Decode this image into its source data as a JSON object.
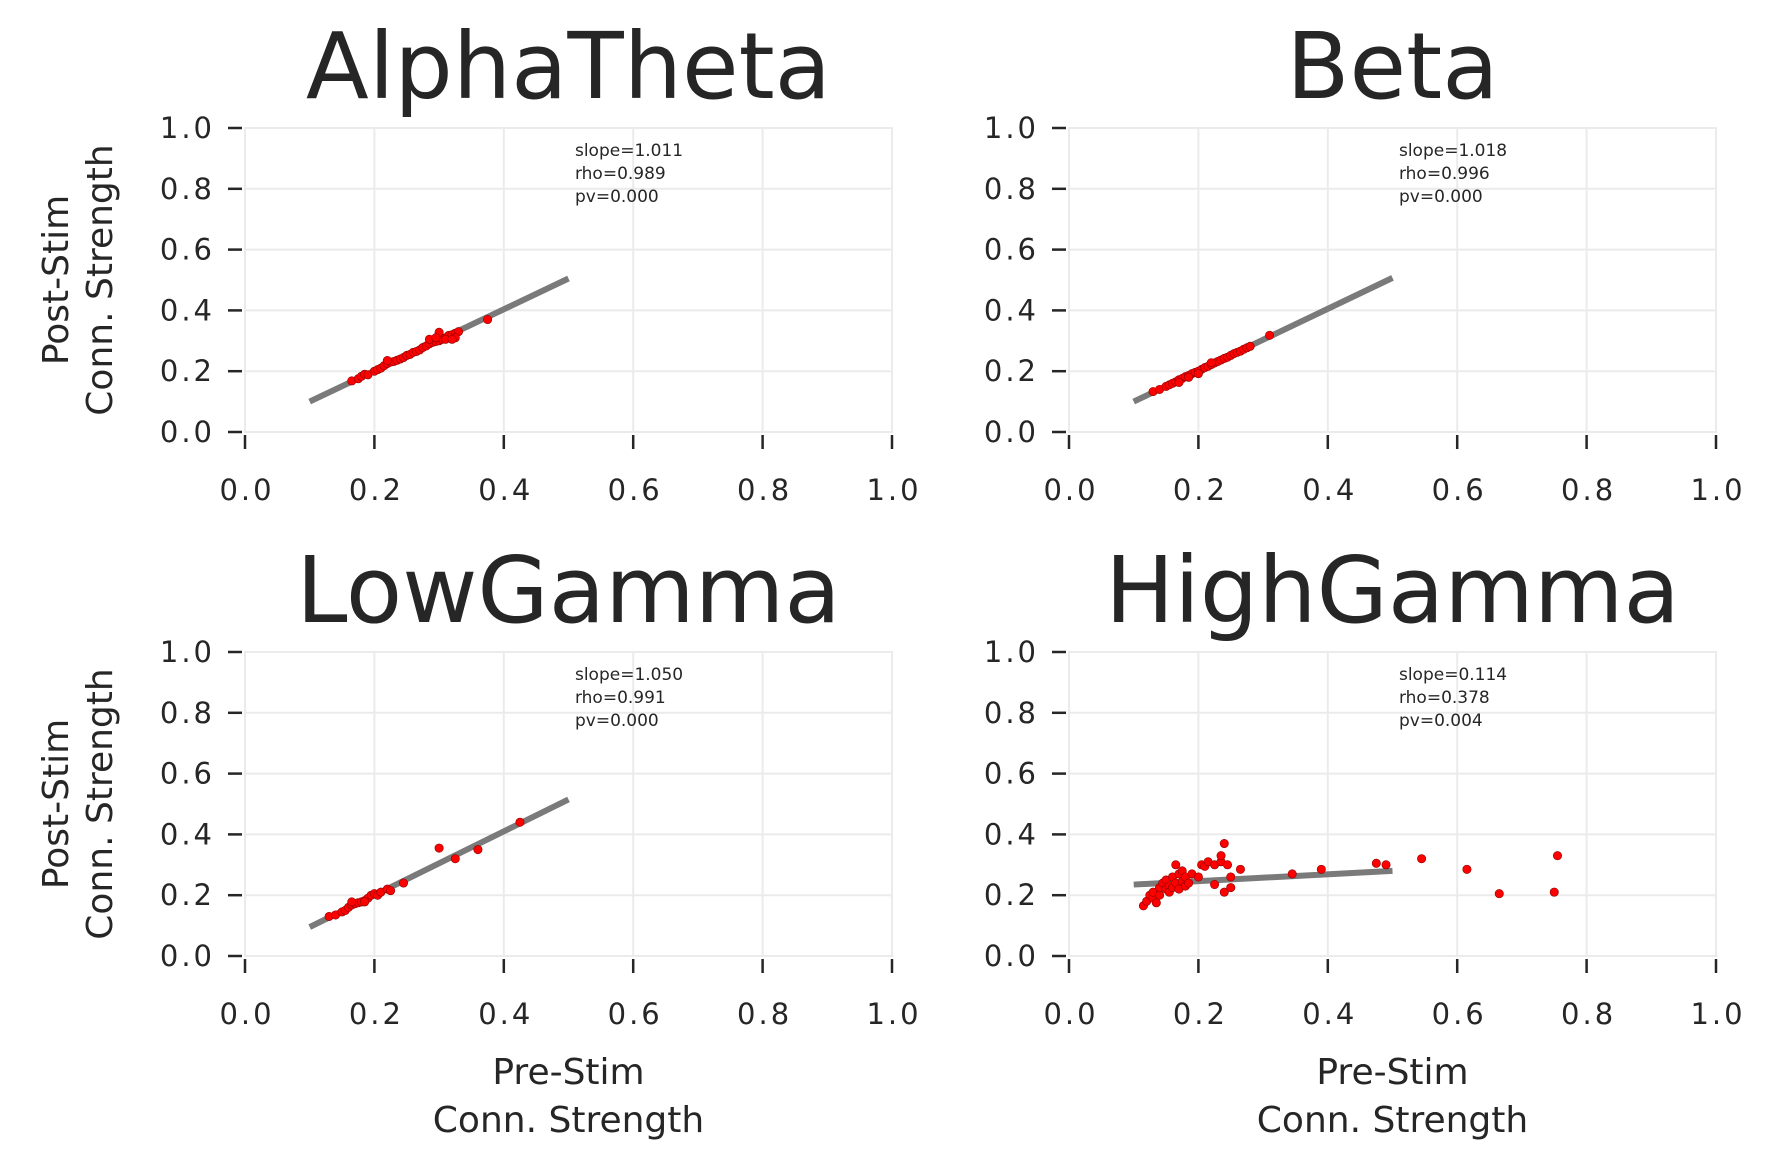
{
  "chart_data": [
    {
      "type": "scatter",
      "title": "AlphaTheta",
      "xlabel": "",
      "ylabel": [
        "Post-Stim",
        "Conn. Strength"
      ],
      "xlim": [
        0.0,
        1.0
      ],
      "ylim": [
        0.0,
        1.0
      ],
      "xticks": [
        "0.0",
        "0.2",
        "0.4",
        "0.6",
        "0.8",
        "1.0"
      ],
      "yticks": [
        "0.0",
        "0.2",
        "0.4",
        "0.6",
        "0.8",
        "1.0"
      ],
      "grid": true,
      "annotation": [
        "slope=1.011",
        "rho=0.989",
        "pv=0.000"
      ],
      "fit_line": {
        "x": [
          0.1,
          0.5
        ],
        "y": [
          0.1,
          0.505
        ]
      },
      "point_color": "#ff0000",
      "points": [
        [
          0.165,
          0.168
        ],
        [
          0.175,
          0.175
        ],
        [
          0.18,
          0.183
        ],
        [
          0.185,
          0.19
        ],
        [
          0.19,
          0.188
        ],
        [
          0.2,
          0.2
        ],
        [
          0.205,
          0.205
        ],
        [
          0.21,
          0.21
        ],
        [
          0.215,
          0.218
        ],
        [
          0.22,
          0.225
        ],
        [
          0.225,
          0.23
        ],
        [
          0.23,
          0.232
        ],
        [
          0.235,
          0.236
        ],
        [
          0.24,
          0.24
        ],
        [
          0.245,
          0.245
        ],
        [
          0.25,
          0.252
        ],
        [
          0.255,
          0.255
        ],
        [
          0.26,
          0.262
        ],
        [
          0.265,
          0.265
        ],
        [
          0.27,
          0.27
        ],
        [
          0.275,
          0.278
        ],
        [
          0.28,
          0.283
        ],
        [
          0.285,
          0.29
        ],
        [
          0.29,
          0.295
        ],
        [
          0.295,
          0.298
        ],
        [
          0.3,
          0.3
        ],
        [
          0.305,
          0.305
        ],
        [
          0.31,
          0.31
        ],
        [
          0.315,
          0.318
        ],
        [
          0.32,
          0.32
        ],
        [
          0.325,
          0.325
        ],
        [
          0.33,
          0.33
        ],
        [
          0.3,
          0.328
        ],
        [
          0.285,
          0.305
        ],
        [
          0.31,
          0.305
        ],
        [
          0.325,
          0.31
        ],
        [
          0.22,
          0.235
        ],
        [
          0.375,
          0.37
        ],
        [
          0.32,
          0.305
        ],
        [
          0.295,
          0.31
        ]
      ]
    },
    {
      "type": "scatter",
      "title": "Beta",
      "xlabel": "",
      "ylabel": "",
      "xlim": [
        0.0,
        1.0
      ],
      "ylim": [
        0.0,
        1.0
      ],
      "xticks": [
        "0.0",
        "0.2",
        "0.4",
        "0.6",
        "0.8",
        "1.0"
      ],
      "yticks": [
        "0.0",
        "0.2",
        "0.4",
        "0.6",
        "0.8",
        "1.0"
      ],
      "grid": true,
      "annotation": [
        "slope=1.018",
        "rho=0.996",
        "pv=0.000"
      ],
      "fit_line": {
        "x": [
          0.1,
          0.5
        ],
        "y": [
          0.1,
          0.507
        ]
      },
      "point_color": "#ff0000",
      "points": [
        [
          0.13,
          0.133
        ],
        [
          0.14,
          0.14
        ],
        [
          0.15,
          0.15
        ],
        [
          0.155,
          0.155
        ],
        [
          0.16,
          0.16
        ],
        [
          0.165,
          0.165
        ],
        [
          0.17,
          0.172
        ],
        [
          0.175,
          0.176
        ],
        [
          0.18,
          0.182
        ],
        [
          0.185,
          0.186
        ],
        [
          0.19,
          0.192
        ],
        [
          0.195,
          0.196
        ],
        [
          0.2,
          0.2
        ],
        [
          0.205,
          0.206
        ],
        [
          0.21,
          0.212
        ],
        [
          0.215,
          0.216
        ],
        [
          0.22,
          0.222
        ],
        [
          0.225,
          0.227
        ],
        [
          0.23,
          0.232
        ],
        [
          0.235,
          0.237
        ],
        [
          0.24,
          0.242
        ],
        [
          0.245,
          0.246
        ],
        [
          0.25,
          0.252
        ],
        [
          0.255,
          0.258
        ],
        [
          0.26,
          0.262
        ],
        [
          0.265,
          0.266
        ],
        [
          0.27,
          0.272
        ],
        [
          0.275,
          0.277
        ],
        [
          0.28,
          0.282
        ],
        [
          0.31,
          0.318
        ],
        [
          0.17,
          0.163
        ],
        [
          0.2,
          0.192
        ],
        [
          0.22,
          0.228
        ],
        [
          0.185,
          0.18
        ]
      ]
    },
    {
      "type": "scatter",
      "title": "LowGamma",
      "xlabel": [
        "Pre-Stim",
        "Conn. Strength"
      ],
      "ylabel": [
        "Post-Stim",
        "Conn. Strength"
      ],
      "xlim": [
        0.0,
        1.0
      ],
      "ylim": [
        0.0,
        1.0
      ],
      "xticks": [
        "0.0",
        "0.2",
        "0.4",
        "0.6",
        "0.8",
        "1.0"
      ],
      "yticks": [
        "0.0",
        "0.2",
        "0.4",
        "0.6",
        "0.8",
        "1.0"
      ],
      "grid": true,
      "annotation": [
        "slope=1.050",
        "rho=0.991",
        "pv=0.000"
      ],
      "fit_line": {
        "x": [
          0.1,
          0.5
        ],
        "y": [
          0.095,
          0.515
        ]
      },
      "point_color": "#ff0000",
      "points": [
        [
          0.13,
          0.13
        ],
        [
          0.14,
          0.135
        ],
        [
          0.15,
          0.145
        ],
        [
          0.155,
          0.15
        ],
        [
          0.16,
          0.16
        ],
        [
          0.165,
          0.168
        ],
        [
          0.17,
          0.172
        ],
        [
          0.175,
          0.175
        ],
        [
          0.18,
          0.178
        ],
        [
          0.185,
          0.182
        ],
        [
          0.19,
          0.19
        ],
        [
          0.195,
          0.2
        ],
        [
          0.2,
          0.205
        ],
        [
          0.205,
          0.2
        ],
        [
          0.21,
          0.21
        ],
        [
          0.22,
          0.22
        ],
        [
          0.225,
          0.215
        ],
        [
          0.245,
          0.24
        ],
        [
          0.3,
          0.355
        ],
        [
          0.325,
          0.32
        ],
        [
          0.36,
          0.35
        ],
        [
          0.425,
          0.44
        ],
        [
          0.165,
          0.178
        ],
        [
          0.185,
          0.178
        ]
      ]
    },
    {
      "type": "scatter",
      "title": "HighGamma",
      "xlabel": [
        "Pre-Stim",
        "Conn. Strength"
      ],
      "ylabel": "",
      "xlim": [
        0.0,
        1.0
      ],
      "ylim": [
        0.0,
        1.0
      ],
      "xticks": [
        "0.0",
        "0.2",
        "0.4",
        "0.6",
        "0.8",
        "1.0"
      ],
      "yticks": [
        "0.0",
        "0.2",
        "0.4",
        "0.6",
        "0.8",
        "1.0"
      ],
      "grid": true,
      "annotation": [
        "slope=0.114",
        "rho=0.378",
        "pv=0.004"
      ],
      "fit_line": {
        "x": [
          0.1,
          0.5
        ],
        "y": [
          0.235,
          0.28
        ]
      },
      "point_color": "#ff0000",
      "points": [
        [
          0.115,
          0.165
        ],
        [
          0.12,
          0.18
        ],
        [
          0.125,
          0.2
        ],
        [
          0.13,
          0.19
        ],
        [
          0.13,
          0.21
        ],
        [
          0.135,
          0.175
        ],
        [
          0.14,
          0.2
        ],
        [
          0.14,
          0.225
        ],
        [
          0.145,
          0.24
        ],
        [
          0.15,
          0.22
        ],
        [
          0.15,
          0.25
        ],
        [
          0.155,
          0.23
        ],
        [
          0.155,
          0.21
        ],
        [
          0.16,
          0.225
        ],
        [
          0.16,
          0.26
        ],
        [
          0.165,
          0.24
        ],
        [
          0.165,
          0.3
        ],
        [
          0.17,
          0.22
        ],
        [
          0.17,
          0.27
        ],
        [
          0.175,
          0.245
        ],
        [
          0.175,
          0.28
        ],
        [
          0.18,
          0.23
        ],
        [
          0.18,
          0.26
        ],
        [
          0.185,
          0.24
        ],
        [
          0.19,
          0.27
        ],
        [
          0.2,
          0.26
        ],
        [
          0.205,
          0.3
        ],
        [
          0.21,
          0.295
        ],
        [
          0.215,
          0.31
        ],
        [
          0.225,
          0.3
        ],
        [
          0.225,
          0.235
        ],
        [
          0.235,
          0.31
        ],
        [
          0.235,
          0.33
        ],
        [
          0.24,
          0.37
        ],
        [
          0.24,
          0.21
        ],
        [
          0.245,
          0.3
        ],
        [
          0.25,
          0.225
        ],
        [
          0.25,
          0.26
        ],
        [
          0.265,
          0.285
        ],
        [
          0.345,
          0.27
        ],
        [
          0.39,
          0.285
        ],
        [
          0.475,
          0.305
        ],
        [
          0.49,
          0.3
        ],
        [
          0.545,
          0.32
        ],
        [
          0.615,
          0.285
        ],
        [
          0.665,
          0.205
        ],
        [
          0.75,
          0.21
        ],
        [
          0.755,
          0.33
        ]
      ]
    }
  ]
}
